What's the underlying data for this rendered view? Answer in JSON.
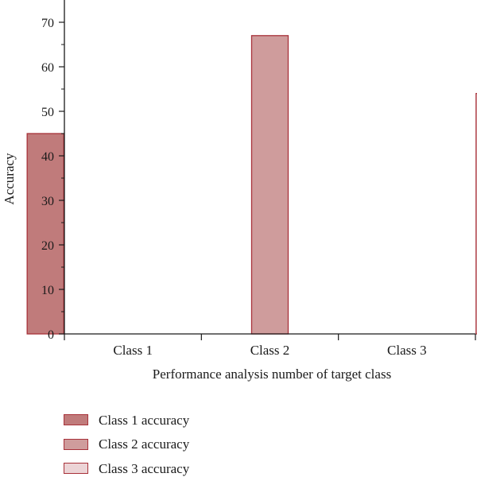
{
  "chart_data": {
    "type": "bar",
    "title": "",
    "xlabel": "Performance analysis number of target class",
    "ylabel": "Accuracy",
    "categories": [
      "Class 1",
      "Class 2",
      "Class 3"
    ],
    "ylim": [
      0,
      75
    ],
    "yticks": [
      0,
      10,
      20,
      30,
      40,
      50,
      60,
      70
    ],
    "grid": false,
    "legend_position": "bottom-left",
    "series": [
      {
        "name": "Class 1 accuracy",
        "values": [
          45,
          0,
          0
        ],
        "color": "#c07b7b"
      },
      {
        "name": "Class 2 accuracy",
        "values": [
          0,
          67,
          0
        ],
        "color": "#cf9c9c"
      },
      {
        "name": "Class 3 accuracy",
        "values": [
          0,
          0,
          54
        ],
        "color": "#ecd4d6"
      }
    ],
    "bar_edge_color": "#a8323a"
  }
}
